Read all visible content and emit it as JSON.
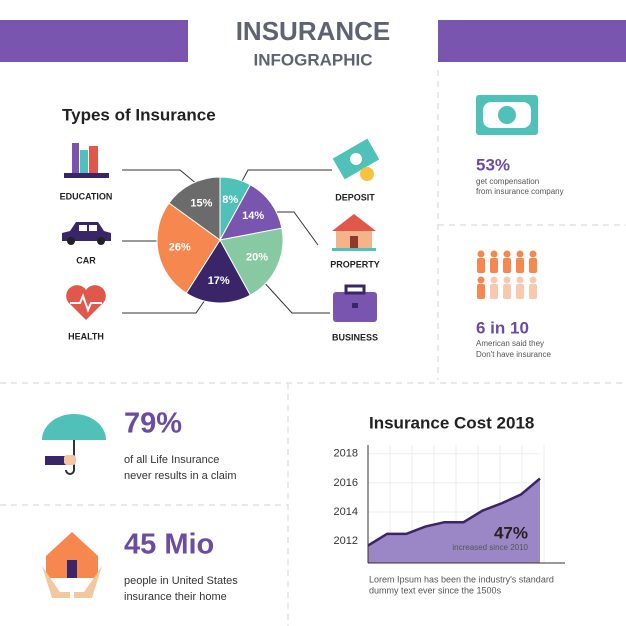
{
  "header": {
    "title": "INSURANCE",
    "subtitle": "INFOGRAPHIC"
  },
  "chart_data": [
    {
      "type": "pie",
      "title": "Types of Insurance",
      "categories": [
        "DEPOSIT",
        "PROPERTY",
        "BUSINESS",
        "HEALTH",
        "CAR",
        "EDUCATION"
      ],
      "values": [
        8,
        14,
        20,
        17,
        26,
        15
      ],
      "value_labels": [
        "8%",
        "14%",
        "20%",
        "17%",
        "26%",
        "15%"
      ],
      "colors": [
        "#4fc1b8",
        "#7a55b0",
        "#86c9a2",
        "#3a2569",
        "#f5874f",
        "#6b6b6b"
      ]
    },
    {
      "type": "area",
      "title": "Insurance Cost 2018",
      "values": [
        2011.7,
        2012.5,
        2012.5,
        2013.0,
        2013.3,
        2013.3,
        2014.1,
        2014.6,
        2015.2,
        2016.3
      ],
      "ylim": [
        2010.5,
        2018.6
      ],
      "yticks": [
        2012,
        2014,
        2016,
        2018
      ],
      "color": "#9b86c6",
      "line_color": "#3a2569",
      "annotation": {
        "value": "47%",
        "text": "increased since 2010"
      },
      "caption": [
        "Lorem Ipsum has been the industry's standard",
        "dummy text ever since the 1500s"
      ]
    }
  ],
  "stats": [
    {
      "value": "53%",
      "lines": [
        "get compensation",
        "from insurance company"
      ]
    },
    {
      "value": "6 in 10",
      "lines": [
        "American said they",
        "Don't have insurance"
      ]
    },
    {
      "value": "79%",
      "lines": [
        "of all Life Insurance",
        "never results in a claim"
      ]
    },
    {
      "value": "45 Mio",
      "lines": [
        "people in United States",
        "insurance their home"
      ]
    }
  ]
}
